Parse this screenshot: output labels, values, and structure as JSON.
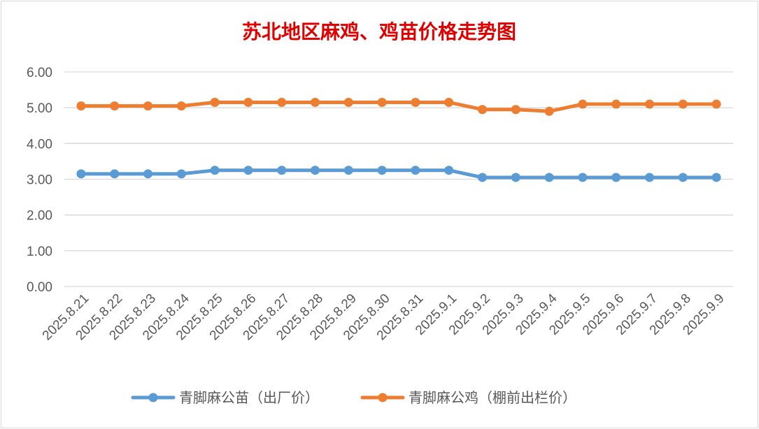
{
  "colors": {
    "title": "#e00000",
    "grid": "#d9d9d9",
    "border": "#d9d9d9",
    "text": "#595959",
    "series_blue": "#5b9bd5",
    "series_orange": "#ed7d31"
  },
  "chart_data": {
    "type": "line",
    "title": "苏北地区麻鸡、鸡苗价格走势图",
    "xlabel": "",
    "ylabel": "",
    "ylim": [
      0,
      6
    ],
    "yticks": [
      "0.00",
      "1.00",
      "2.00",
      "3.00",
      "4.00",
      "5.00",
      "6.00"
    ],
    "grid": true,
    "legend_position": "bottom",
    "categories": [
      "2025.8.21",
      "2025.8.22",
      "2025.8.23",
      "2025.8.24",
      "2025.8.25",
      "2025.8.26",
      "2025.8.27",
      "2025.8.28",
      "2025.8.29",
      "2025.8.30",
      "2025.8.31",
      "2025.9.1",
      "2025.9.2",
      "2025.9.3",
      "2025.9.4",
      "2025.9.5",
      "2025.9.6",
      "2025.9.7",
      "2025.9.8",
      "2025.9.9"
    ],
    "series": [
      {
        "name": "青脚麻公苗（出厂价）",
        "color": "#5b9bd5",
        "values": [
          3.15,
          3.15,
          3.15,
          3.15,
          3.25,
          3.25,
          3.25,
          3.25,
          3.25,
          3.25,
          3.25,
          3.25,
          3.05,
          3.05,
          3.05,
          3.05,
          3.05,
          3.05,
          3.05,
          3.05
        ]
      },
      {
        "name": "青脚麻公鸡（棚前出栏价）",
        "color": "#ed7d31",
        "values": [
          5.05,
          5.05,
          5.05,
          5.05,
          5.15,
          5.15,
          5.15,
          5.15,
          5.15,
          5.15,
          5.15,
          5.15,
          4.95,
          4.95,
          4.9,
          5.1,
          5.1,
          5.1,
          5.1,
          5.1
        ]
      }
    ]
  }
}
